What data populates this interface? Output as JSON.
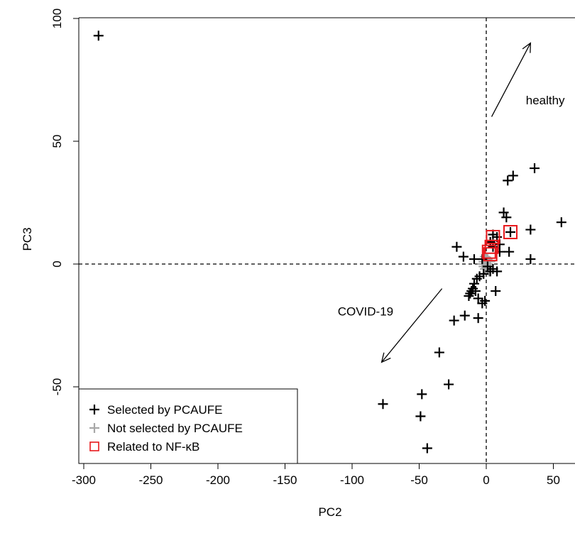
{
  "chart_data": {
    "type": "scatter",
    "title": "",
    "xlabel": "PC2",
    "ylabel": "PC3",
    "xlim": [
      -300,
      55
    ],
    "ylim": [
      -81,
      100
    ],
    "x_ticks": [
      -300,
      -250,
      -200,
      -150,
      -100,
      -50,
      0,
      50
    ],
    "y_ticks": [
      -50,
      0,
      50,
      100
    ],
    "reference_lines": {
      "x": 0,
      "y": 0,
      "style": "dashed"
    },
    "colors": {
      "selected": "#000000",
      "not_selected": "#a8a8a8",
      "nfkb": "#e8181c"
    },
    "series": [
      {
        "name": "Selected by PCAUFE",
        "marker": "plus",
        "color": "#000000",
        "points": [
          [
            -289,
            93
          ],
          [
            36,
            39
          ],
          [
            20,
            36
          ],
          [
            16,
            34
          ],
          [
            13,
            21
          ],
          [
            15,
            19
          ],
          [
            56,
            17
          ],
          [
            33,
            14
          ],
          [
            18,
            13
          ],
          [
            5,
            12
          ],
          [
            8,
            11
          ],
          [
            3,
            9
          ],
          [
            10,
            8
          ],
          [
            5,
            7
          ],
          [
            17,
            5
          ],
          [
            10,
            5
          ],
          [
            -22,
            7
          ],
          [
            -17,
            3
          ],
          [
            -9,
            2
          ],
          [
            33,
            2
          ],
          [
            -3,
            2
          ],
          [
            1,
            -1
          ],
          [
            5,
            -2
          ],
          [
            8,
            -3
          ],
          [
            3,
            -3
          ],
          [
            -2,
            -4
          ],
          [
            -5,
            -5
          ],
          [
            -7,
            -6
          ],
          [
            -9,
            -8
          ],
          [
            -10,
            -10
          ],
          [
            -11,
            -11
          ],
          [
            -12,
            -12
          ],
          [
            -8,
            -11
          ],
          [
            7,
            -11
          ],
          [
            -13,
            -13
          ],
          [
            -6,
            -14
          ],
          [
            -1,
            -15
          ],
          [
            -3,
            -16
          ],
          [
            -16,
            -21
          ],
          [
            -6,
            -22
          ],
          [
            -24,
            -23
          ],
          [
            -35,
            -36
          ],
          [
            -28,
            -49
          ],
          [
            -48,
            -53
          ],
          [
            -77,
            -57
          ],
          [
            -49,
            -62
          ],
          [
            -44,
            -75
          ]
        ]
      },
      {
        "name": "Not selected by PCAUFE",
        "marker": "plus",
        "color": "#a8a8a8",
        "points": [
          [
            -1,
            1
          ],
          [
            1,
            0
          ],
          [
            0,
            -1
          ],
          [
            -2,
            -1
          ],
          [
            -1,
            -2
          ],
          [
            2,
            -1
          ],
          [
            1,
            2
          ],
          [
            3,
            1
          ],
          [
            -3,
            0
          ],
          [
            0,
            2
          ],
          [
            2,
            -3
          ],
          [
            -1,
            3
          ],
          [
            1,
            -2
          ],
          [
            -2,
            1
          ],
          [
            0,
            0
          ]
        ]
      },
      {
        "name": "Related to NF-κB",
        "marker": "square",
        "color": "#e8181c",
        "points": [
          [
            5,
            11
          ],
          [
            18,
            13
          ],
          [
            4,
            7
          ],
          [
            2,
            5
          ],
          [
            3,
            4
          ]
        ]
      }
    ],
    "annotations": [
      {
        "text": "healthy",
        "arrow_from": [
          4,
          60
        ],
        "arrow_to": [
          33,
          90
        ],
        "text_at": [
          44,
          65
        ]
      },
      {
        "text": "COVID-19",
        "arrow_from": [
          -33,
          -10
        ],
        "arrow_to": [
          -78,
          -40
        ],
        "text_at": [
          -90,
          -21
        ]
      }
    ],
    "legend": {
      "position": "bottom-left",
      "entries": [
        "Selected by PCAUFE",
        "Not selected by PCAUFE",
        "Related to NF-κB"
      ]
    },
    "grid": false
  }
}
